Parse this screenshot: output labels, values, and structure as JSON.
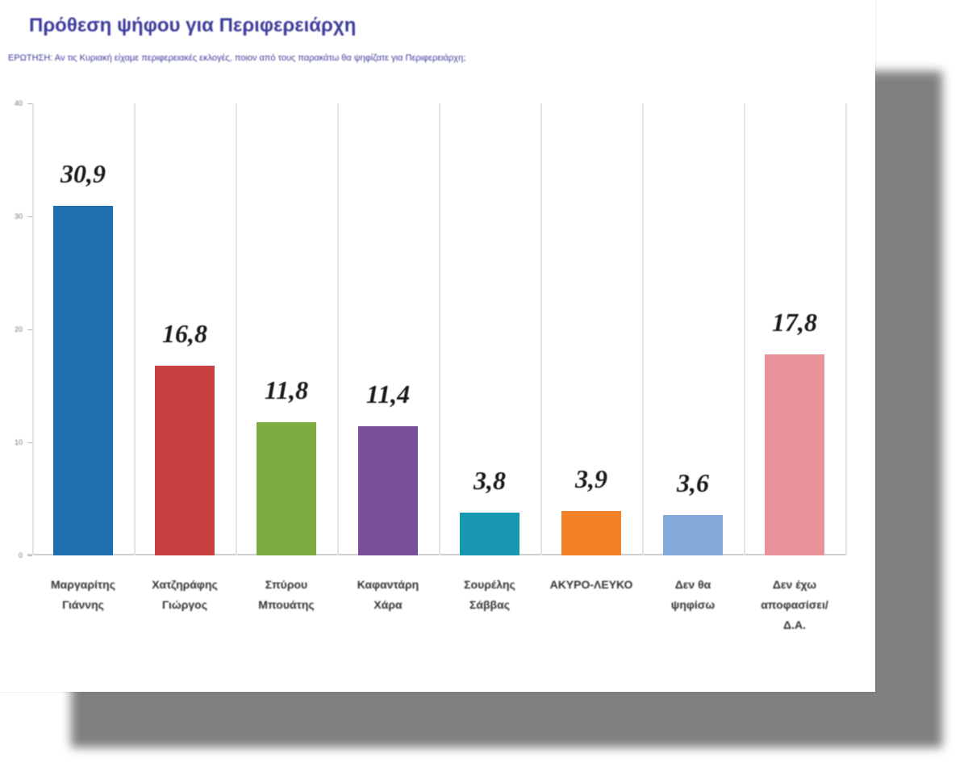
{
  "title": "Πρόθεση ψήφου για Περιφερειάρχη",
  "subtitle": "ΕΡΩΤΗΣΗ: Αν τις Κυριακή είχαμε περιφερειακές εκλογές, ποιον από τους παρακάτω θα ψηφίζατε για Περιφερειάρχη;",
  "colors": {
    "title": "#3b3b9a",
    "shadow": "#808080",
    "gridline": "#e2e2e2"
  },
  "chart_data": {
    "type": "bar",
    "title": "Πρόθεση ψήφου για Περιφερειάρχη",
    "xlabel": "",
    "ylabel": "",
    "ylim": [
      0,
      40
    ],
    "yticks": [
      0,
      10,
      20,
      30,
      40
    ],
    "grid": {
      "vertical": true,
      "horizontal": false
    },
    "legend": null,
    "categories": [
      "Μαργαρίτης Γιάννης",
      "Χατζηράφης Γιώργος",
      "Σπύρου Μπουάτης",
      "Καφαντάρη Χάρα",
      "Σουρέλης Σάββας",
      "ΑΚΥΡΟ-ΛΕΥΚΟ",
      "Δεν θα ψηφίσω",
      "Δεν έχω αποφασίσει/ Δ.Α."
    ],
    "values": [
      30.9,
      16.8,
      11.8,
      11.4,
      3.8,
      3.9,
      3.6,
      17.8
    ],
    "value_labels": [
      "30,9",
      "16,8",
      "11,8",
      "11,4",
      "3,8",
      "3,9",
      "3,6",
      "17,8"
    ],
    "bar_colors": [
      "#1f6fae",
      "#c94040",
      "#7eab3f",
      "#7a4f9a",
      "#1898b0",
      "#f28026",
      "#85a8db",
      "#e8939a"
    ]
  },
  "xlabels": [
    {
      "l1": "Μαργαρίτης",
      "l2": "Γιάννης",
      "l3": ""
    },
    {
      "l1": "Χατζηράφης",
      "l2": "Γιώργος",
      "l3": ""
    },
    {
      "l1": "Σπύρου",
      "l2": "Μπουάτης",
      "l3": ""
    },
    {
      "l1": "Καφαντάρη",
      "l2": "Χάρα",
      "l3": ""
    },
    {
      "l1": "Σουρέλης",
      "l2": "Σάββας",
      "l3": ""
    },
    {
      "l1": "ΑΚΥΡΟ-ΛΕΥΚΟ",
      "l2": "",
      "l3": ""
    },
    {
      "l1": "Δεν θα",
      "l2": "ψηφίσω",
      "l3": ""
    },
    {
      "l1": "Δεν έχω",
      "l2": "αποφασίσει/",
      "l3": "Δ.Α."
    }
  ],
  "ytick_labels": [
    "0",
    "10",
    "20",
    "30",
    "40"
  ]
}
